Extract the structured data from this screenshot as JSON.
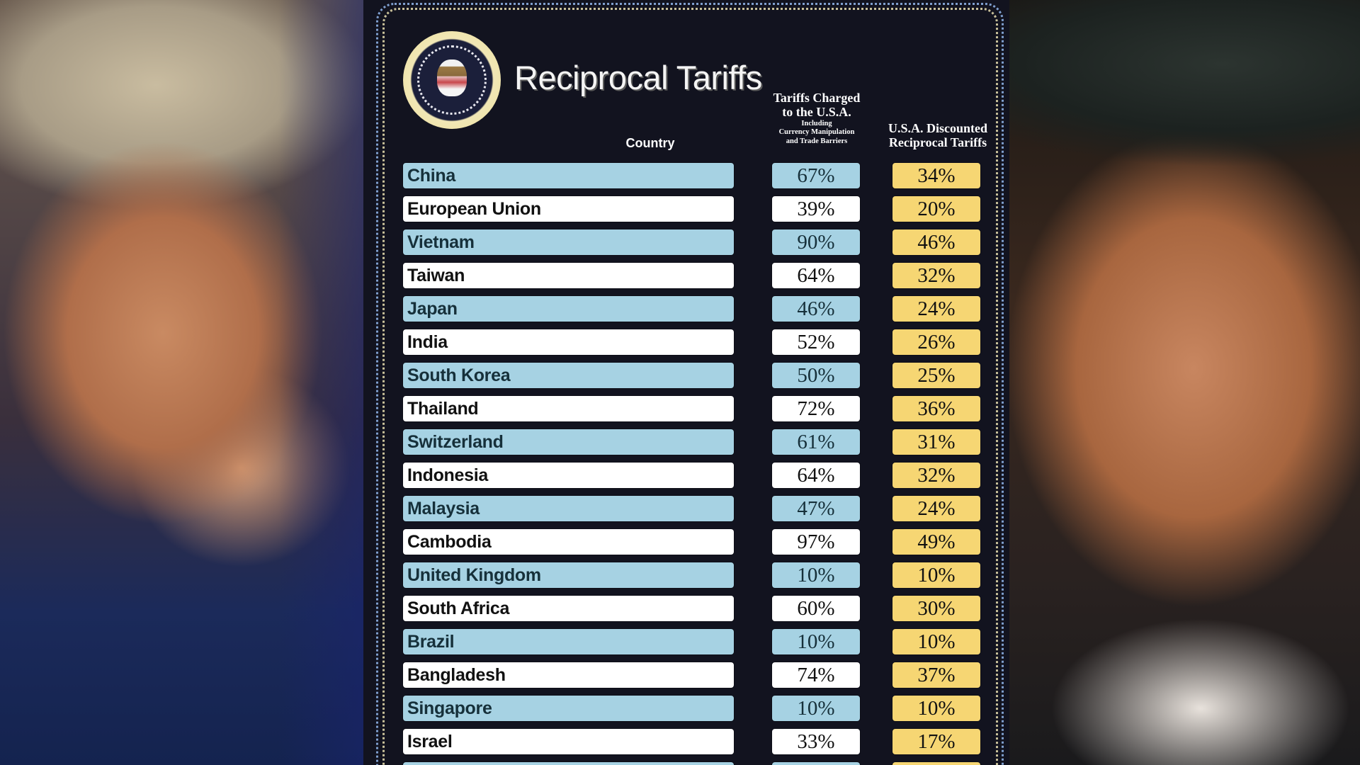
{
  "header": {
    "title": "Reciprocal Tariffs",
    "seal_text": "SEAL OF THE PRESIDENT OF THE UNITED STATES",
    "columns": {
      "country": "Country",
      "charged_line1": "Tariffs Charged",
      "charged_line2": "to the U.S.A.",
      "charged_sub1": "Including",
      "charged_sub2": "Currency Manipulation",
      "charged_sub3": "and Trade Barriers",
      "reciprocal_line1": "U.S.A. Discounted",
      "reciprocal_line2": "Reciprocal Tariffs"
    }
  },
  "colors": {
    "background": "#12131f",
    "row_blue": "#a6d2e3",
    "row_white": "#ffffff",
    "reciprocal_gold": "#f6d673",
    "border_blue_dots": "#7f9fcf",
    "border_gold_dots": "#c9c19a"
  },
  "photos": {
    "left": "photo-left",
    "right": "photo-right"
  },
  "rows": [
    {
      "country": "China",
      "charged": "67%",
      "reciprocal": "34%"
    },
    {
      "country": "European Union",
      "charged": "39%",
      "reciprocal": "20%"
    },
    {
      "country": "Vietnam",
      "charged": "90%",
      "reciprocal": "46%"
    },
    {
      "country": "Taiwan",
      "charged": "64%",
      "reciprocal": "32%"
    },
    {
      "country": "Japan",
      "charged": "46%",
      "reciprocal": "24%"
    },
    {
      "country": "India",
      "charged": "52%",
      "reciprocal": "26%"
    },
    {
      "country": "South Korea",
      "charged": "50%",
      "reciprocal": "25%"
    },
    {
      "country": "Thailand",
      "charged": "72%",
      "reciprocal": "36%"
    },
    {
      "country": "Switzerland",
      "charged": "61%",
      "reciprocal": "31%"
    },
    {
      "country": "Indonesia",
      "charged": "64%",
      "reciprocal": "32%"
    },
    {
      "country": "Malaysia",
      "charged": "47%",
      "reciprocal": "24%"
    },
    {
      "country": "Cambodia",
      "charged": "97%",
      "reciprocal": "49%"
    },
    {
      "country": "United Kingdom",
      "charged": "10%",
      "reciprocal": "10%"
    },
    {
      "country": "South Africa",
      "charged": "60%",
      "reciprocal": "30%"
    },
    {
      "country": "Brazil",
      "charged": "10%",
      "reciprocal": "10%"
    },
    {
      "country": "Bangladesh",
      "charged": "74%",
      "reciprocal": "37%"
    },
    {
      "country": "Singapore",
      "charged": "10%",
      "reciprocal": "10%"
    },
    {
      "country": "Israel",
      "charged": "33%",
      "reciprocal": "17%"
    },
    {
      "country": "",
      "charged": "",
      "reciprocal": ""
    }
  ],
  "chart_data": {
    "type": "table",
    "title": "Reciprocal Tariffs",
    "columns": [
      "Country",
      "Tariffs Charged to the U.S.A. (Including Currency Manipulation and Trade Barriers)",
      "U.S.A. Discounted Reciprocal Tariffs"
    ],
    "categories": [
      "China",
      "European Union",
      "Vietnam",
      "Taiwan",
      "Japan",
      "India",
      "South Korea",
      "Thailand",
      "Switzerland",
      "Indonesia",
      "Malaysia",
      "Cambodia",
      "United Kingdom",
      "South Africa",
      "Brazil",
      "Bangladesh",
      "Singapore",
      "Israel"
    ],
    "series": [
      {
        "name": "Tariffs Charged to the U.S.A.",
        "unit": "%",
        "values": [
          67,
          39,
          90,
          64,
          46,
          52,
          50,
          72,
          61,
          64,
          47,
          97,
          10,
          60,
          10,
          74,
          10,
          33
        ]
      },
      {
        "name": "U.S.A. Discounted Reciprocal Tariffs",
        "unit": "%",
        "values": [
          34,
          20,
          46,
          32,
          24,
          26,
          25,
          36,
          31,
          32,
          24,
          49,
          10,
          30,
          10,
          37,
          10,
          17
        ]
      }
    ],
    "notes": "Table continues below visible area (partially visible 19th row)."
  }
}
